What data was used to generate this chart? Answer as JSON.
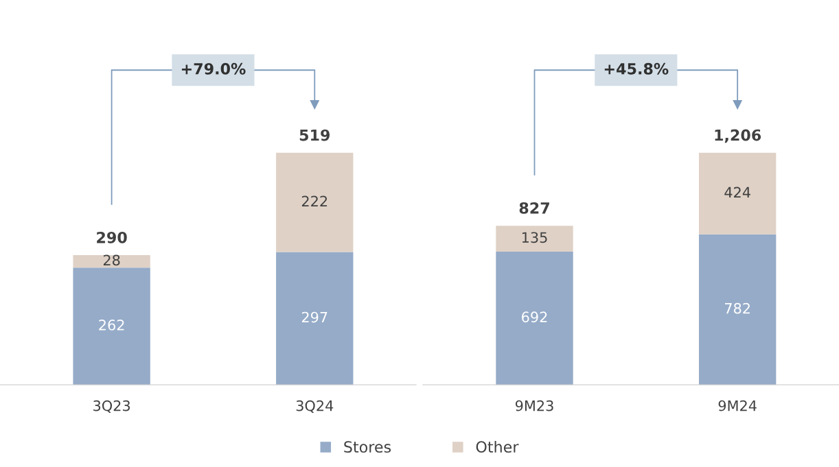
{
  "chart_data": [
    {
      "type": "bar",
      "stacked": true,
      "categories": [
        "3Q23",
        "3Q24"
      ],
      "data_labels": true,
      "legend": "bottom",
      "totals": [
        "290",
        "519"
      ],
      "annotations": [
        "+79.0%"
      ],
      "series": [
        {
          "name": "Stores",
          "color": "#95abc8",
          "values": [
            262,
            297
          ]
        },
        {
          "name": "Other",
          "color": "#dfd1c6",
          "values": [
            28,
            222
          ]
        }
      ]
    },
    {
      "type": "bar",
      "stacked": true,
      "categories": [
        "9M23",
        "9M24"
      ],
      "data_labels": true,
      "totals": [
        "827",
        "1,206"
      ],
      "legend": "bottom",
      "annotations": [
        "+45.8%"
      ],
      "series": [
        {
          "name": "Stores",
          "color": "#95abc8",
          "values": [
            692,
            782
          ]
        },
        {
          "name": "Other",
          "color": "#dfd1c6",
          "values": [
            135,
            424
          ]
        }
      ]
    }
  ]
}
